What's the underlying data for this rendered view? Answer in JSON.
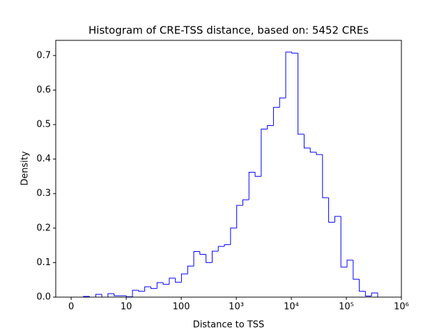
{
  "chart_data": {
    "type": "histogram",
    "title": "Histogram of CRE-TSS distance, based on: 5452 CREs",
    "xlabel": "Distance to TSS",
    "ylabel": "Density",
    "xscale": "symlog",
    "linthresh": 10,
    "color": "#0000ff",
    "bins": [
      0,
      1.114,
      2.23,
      3.34,
      4.46,
      5.57,
      6.68,
      7.8,
      8.91,
      10.06,
      13.0,
      16.8,
      21.7,
      28.1,
      36.3,
      46.9,
      60.6,
      78.3,
      101,
      131,
      169,
      218,
      282,
      365,
      471,
      609,
      787,
      1018,
      1315,
      1700,
      2197,
      2839,
      3668,
      4741,
      6127,
      7918,
      10233,
      13223,
      17089,
      22085,
      28540,
      36884,
      47665,
      61600,
      79606,
      102876,
      132949,
      171812,
      222036,
      286942,
      370820
    ],
    "values": [
      0,
      0,
      0.002,
      0,
      0.008,
      0,
      0.01,
      0.004,
      0.004,
      0.001,
      0.02,
      0.017,
      0.03,
      0.025,
      0.042,
      0.037,
      0.055,
      0.043,
      0.067,
      0.09,
      0.132,
      0.124,
      0.1,
      0.133,
      0.147,
      0.152,
      0.2,
      0.266,
      0.282,
      0.362,
      0.35,
      0.487,
      0.497,
      0.55,
      0.577,
      0.71,
      0.707,
      0.472,
      0.432,
      0.42,
      0.413,
      0.288,
      0.217,
      0.234,
      0.087,
      0.107,
      0.052,
      0.017,
      0.003,
      0.012
    ],
    "xlim": [
      -2.8,
      1000000
    ],
    "xticks": [
      0,
      10,
      100,
      {
        "value": 1000,
        "label": "10³"
      },
      {
        "value": 10000,
        "label": "10⁴"
      },
      {
        "value": 100000,
        "label": "10⁵"
      },
      {
        "value": 1000000,
        "label": "10⁶"
      }
    ],
    "ylim": [
      0,
      0.744
    ],
    "yticks": [
      {
        "value": 0,
        "label": "0.0"
      },
      0.1,
      0.2,
      0.3,
      0.4,
      0.5,
      0.6,
      0.7
    ]
  }
}
